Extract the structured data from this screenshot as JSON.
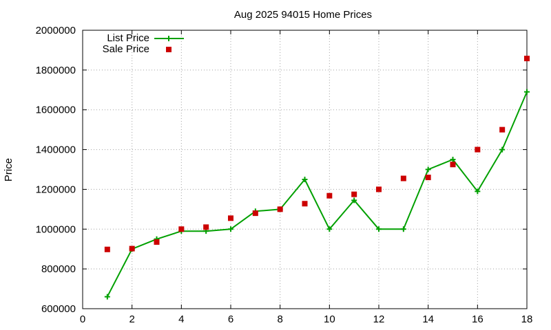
{
  "chart_data": {
    "type": "line",
    "title": "Aug 2025 94015 Home Prices",
    "xlabel": "",
    "ylabel": "Price",
    "xlim": [
      0,
      18
    ],
    "ylim": [
      600000,
      2000000
    ],
    "xticks": [
      0,
      2,
      4,
      6,
      8,
      10,
      12,
      14,
      16,
      18
    ],
    "yticks": [
      600000,
      800000,
      1000000,
      1200000,
      1400000,
      1600000,
      1800000,
      2000000
    ],
    "xtick_labels": [
      "0",
      "2",
      "4",
      "6",
      "8",
      "10",
      "12",
      "14",
      "16",
      "18"
    ],
    "ytick_labels": [
      "600000",
      "800000",
      "1000000",
      "1200000",
      "1400000",
      "1600000",
      "1800000",
      "2000000"
    ],
    "grid": true,
    "legend_position": "top-left",
    "series": [
      {
        "name": "List Price",
        "style": "line+cross",
        "color": "#00a000",
        "x": [
          1,
          2,
          3,
          4,
          5,
          6,
          7,
          8,
          9,
          10,
          11,
          12,
          13,
          14,
          15,
          16,
          17,
          18
        ],
        "y": [
          660000,
          900000,
          950000,
          990000,
          990000,
          1000000,
          1090000,
          1100000,
          1250000,
          1000000,
          1145000,
          1000000,
          1000000,
          1300000,
          1350000,
          1190000,
          1400000,
          1690000
        ]
      },
      {
        "name": "Sale Price",
        "style": "square-points",
        "color": "#cc0000",
        "x": [
          1,
          2,
          3,
          4,
          5,
          6,
          7,
          8,
          9,
          10,
          11,
          12,
          13,
          14,
          15,
          16,
          17,
          18
        ],
        "y": [
          898000,
          902000,
          935000,
          1000000,
          1010000,
          1055000,
          1080000,
          1100000,
          1128000,
          1168000,
          1175000,
          1200000,
          1255000,
          1260000,
          1325000,
          1400000,
          1500000,
          1858000
        ]
      }
    ]
  }
}
